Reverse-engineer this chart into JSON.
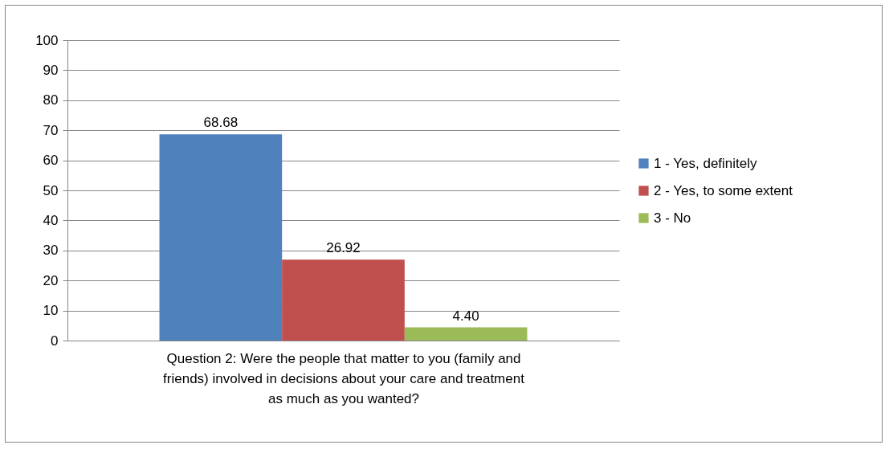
{
  "chart_data": {
    "type": "bar",
    "xlabel": "Question 2:  Were the people that matter to you (family and friends) involved in decisions about your care and treatment as much as you wanted?",
    "categories": [
      null
    ],
    "series": [
      {
        "name": "1 - Yes, definitely",
        "color": "#4f81bd",
        "values": [
          68.68
        ],
        "value_labels": [
          "68.68"
        ]
      },
      {
        "name": "2 - Yes, to some extent",
        "color": "#c0504d",
        "values": [
          26.92
        ],
        "value_labels": [
          "26.92"
        ]
      },
      {
        "name": "3 - No",
        "color": "#9bbb59",
        "values": [
          4.4
        ],
        "value_labels": [
          "4.40"
        ]
      }
    ],
    "ylim": [
      0,
      100
    ],
    "yticks": [
      0,
      10,
      20,
      30,
      40,
      50,
      60,
      70,
      80,
      90,
      100
    ],
    "grid": "y",
    "legend": "right"
  }
}
